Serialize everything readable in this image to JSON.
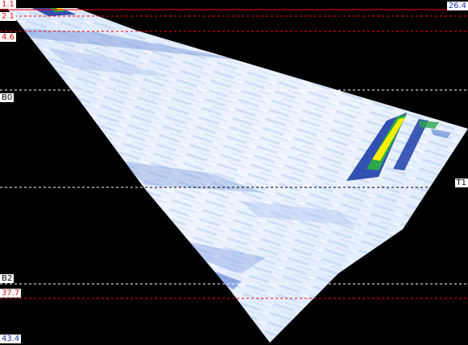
{
  "scan": {
    "colors": {
      "background": "#000000",
      "fan_base": "#e6efff",
      "red_cursor": "#ff0000",
      "white_cursor": "#ffffff",
      "high_amplitude": "#ffee00",
      "mid_amplitude": "#2aa84a",
      "low_amplitude": "#1f3fa8"
    }
  },
  "cursors": {
    "c_1_1": {
      "label": "1.1",
      "style": "red-solid"
    },
    "c_2_1": {
      "label": "2.1",
      "style": "red-dashed"
    },
    "c_4_6": {
      "label": "4.6",
      "style": "red-dashed"
    },
    "c_b0": {
      "label": "B0",
      "style": "white-dashed"
    },
    "c_t1": {
      "label": "T1",
      "style": "white-dashed"
    },
    "c_b2": {
      "label": "B2",
      "style": "white-dashed"
    },
    "c_37_7": {
      "label": "37.7",
      "style": "red-dashed"
    }
  },
  "scale": {
    "top_value": "26.4",
    "bottom_value": "43.4"
  }
}
